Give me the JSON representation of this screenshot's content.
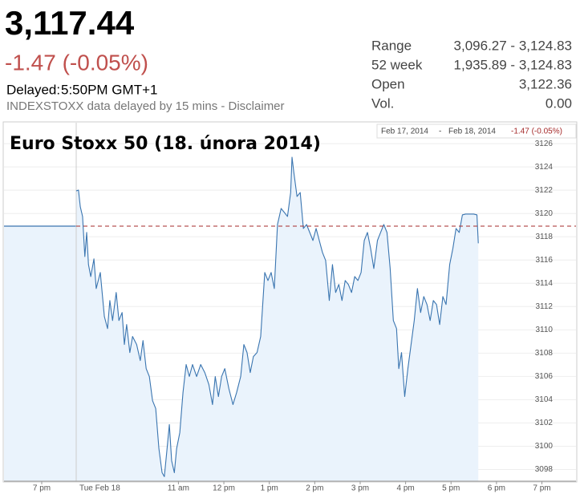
{
  "header": {
    "price": "3,117.44",
    "change": "-1.47 (-0.05%)",
    "delayed_label": "Delayed:",
    "delayed_time": "5:50PM GMT+1",
    "note": "INDEXSTOXX data delayed by 15 mins - Disclaimer",
    "stats": [
      [
        "Range",
        "3,096.27 - 3,124.83"
      ],
      [
        "52 week",
        "1,935.89 - 3,124.83"
      ],
      [
        "Open",
        "3,122.36"
      ],
      [
        "Vol.",
        "0.00"
      ]
    ]
  },
  "chart_data": {
    "type": "line",
    "title": "Euro Stoxx 50 (18. února 2014)",
    "range_from": "Feb 17, 2014",
    "range_sep": "-",
    "range_to": "Feb 18, 2014",
    "range_change": "-1.47 (-0.05%)",
    "color": "#3a75b0",
    "fill_color": "#eaf3fc",
    "previous_close": 3118.91,
    "reference_color": "#a52a2a",
    "xlim": [
      -13,
      19.75
    ],
    "ylim": [
      3097,
      3127.8
    ],
    "xticks": [
      {
        "value": -5,
        "label": "7 pm"
      },
      {
        "value": 8.75,
        "label": "Tue Feb 18"
      },
      {
        "value": 11,
        "label": "11 am"
      },
      {
        "value": 12,
        "label": "12 pm"
      },
      {
        "value": 13,
        "label": "1 pm"
      },
      {
        "value": 14,
        "label": "2 pm"
      },
      {
        "value": 15,
        "label": "3 pm"
      },
      {
        "value": 16,
        "label": "4 pm"
      },
      {
        "value": 17,
        "label": "5 pm"
      },
      {
        "value": 18,
        "label": "6 pm"
      },
      {
        "value": 19,
        "label": "7 pm"
      }
    ],
    "yticks": [
      3098,
      3100,
      3102,
      3104,
      3106,
      3108,
      3110,
      3112,
      3114,
      3116,
      3118,
      3120,
      3122,
      3124,
      3126
    ],
    "grid": true,
    "x": [
      8.75,
      8.8,
      8.84,
      8.89,
      8.94,
      8.98,
      9.02,
      9.07,
      9.14,
      9.19,
      9.28,
      9.37,
      9.44,
      9.49,
      9.55,
      9.63,
      9.69,
      9.76,
      9.81,
      9.86,
      9.93,
      9.99,
      10.08,
      10.16,
      10.22,
      10.29,
      10.36,
      10.43,
      10.5,
      10.57,
      10.64,
      10.69,
      10.75,
      10.8,
      10.85,
      10.91,
      10.96,
      11.03,
      11.1,
      11.17,
      11.24,
      11.31,
      11.4,
      11.49,
      11.58,
      11.67,
      11.75,
      11.81,
      11.88,
      11.95,
      12.02,
      12.11,
      12.2,
      12.28,
      12.37,
      12.44,
      12.51,
      12.58,
      12.65,
      12.73,
      12.81,
      12.9,
      12.97,
      13.04,
      13.11,
      13.18,
      13.26,
      13.33,
      13.4,
      13.47,
      13.5,
      13.54,
      13.61,
      13.68,
      13.75,
      13.82,
      13.89,
      13.96,
      14.03,
      14.1,
      14.17,
      14.24,
      14.32,
      14.39,
      14.46,
      14.53,
      14.6,
      14.67,
      14.74,
      14.81,
      14.88,
      14.95,
      15.02,
      15.09,
      15.16,
      15.23,
      15.3,
      15.38,
      15.45,
      15.52,
      15.59,
      15.66,
      15.73,
      15.8,
      15.85,
      15.91,
      15.98,
      16.05,
      16.12,
      16.19,
      16.26,
      16.33,
      16.4,
      16.47,
      16.54,
      16.61,
      16.68,
      16.75,
      16.82,
      16.89,
      16.97,
      17.04,
      17.11,
      17.18,
      17.25,
      17.32,
      17.41,
      17.5,
      17.57,
      17.6
    ],
    "values": [
      3121.94,
      3122.01,
      3120.57,
      3119.74,
      3116.3,
      3118.37,
      3115.61,
      3114.58,
      3116.1,
      3113.55,
      3114.93,
      3111.14,
      3110.11,
      3112.52,
      3110.8,
      3113.21,
      3110.8,
      3111.49,
      3108.74,
      3110.46,
      3108.05,
      3109.43,
      3108.74,
      3107.36,
      3109.08,
      3106.67,
      3105.99,
      3103.92,
      3103.24,
      3099.8,
      3097.73,
      3097.39,
      3099.8,
      3101.86,
      3098.76,
      3097.73,
      3099.8,
      3101.17,
      3104.61,
      3107.02,
      3105.99,
      3107.02,
      3105.99,
      3107.02,
      3106.33,
      3105.3,
      3103.58,
      3105.99,
      3104.27,
      3105.99,
      3106.67,
      3104.95,
      3103.58,
      3104.61,
      3105.99,
      3108.74,
      3108.05,
      3106.33,
      3107.71,
      3108.05,
      3109.43,
      3114.93,
      3114.24,
      3114.93,
      3113.55,
      3119.05,
      3120.43,
      3120.09,
      3119.74,
      3121.8,
      3124.83,
      3123.52,
      3121.46,
      3121.8,
      3118.71,
      3119.05,
      3118.37,
      3117.68,
      3118.71,
      3117.68,
      3116.65,
      3115.96,
      3112.52,
      3115.61,
      3113.21,
      3113.9,
      3112.52,
      3114.24,
      3113.9,
      3113.21,
      3114.58,
      3114.24,
      3114.93,
      3117.68,
      3118.37,
      3116.99,
      3115.27,
      3117.68,
      3118.37,
      3119.05,
      3118.37,
      3115.27,
      3110.8,
      3110.11,
      3106.67,
      3108.05,
      3104.27,
      3106.67,
      3108.74,
      3110.8,
      3113.55,
      3111.49,
      3112.86,
      3112.18,
      3110.8,
      3112.52,
      3112.18,
      3110.46,
      3112.86,
      3112.18,
      3115.61,
      3116.99,
      3118.71,
      3118.37,
      3119.88,
      3119.95,
      3119.95,
      3119.95,
      3119.88,
      3117.44
    ]
  }
}
